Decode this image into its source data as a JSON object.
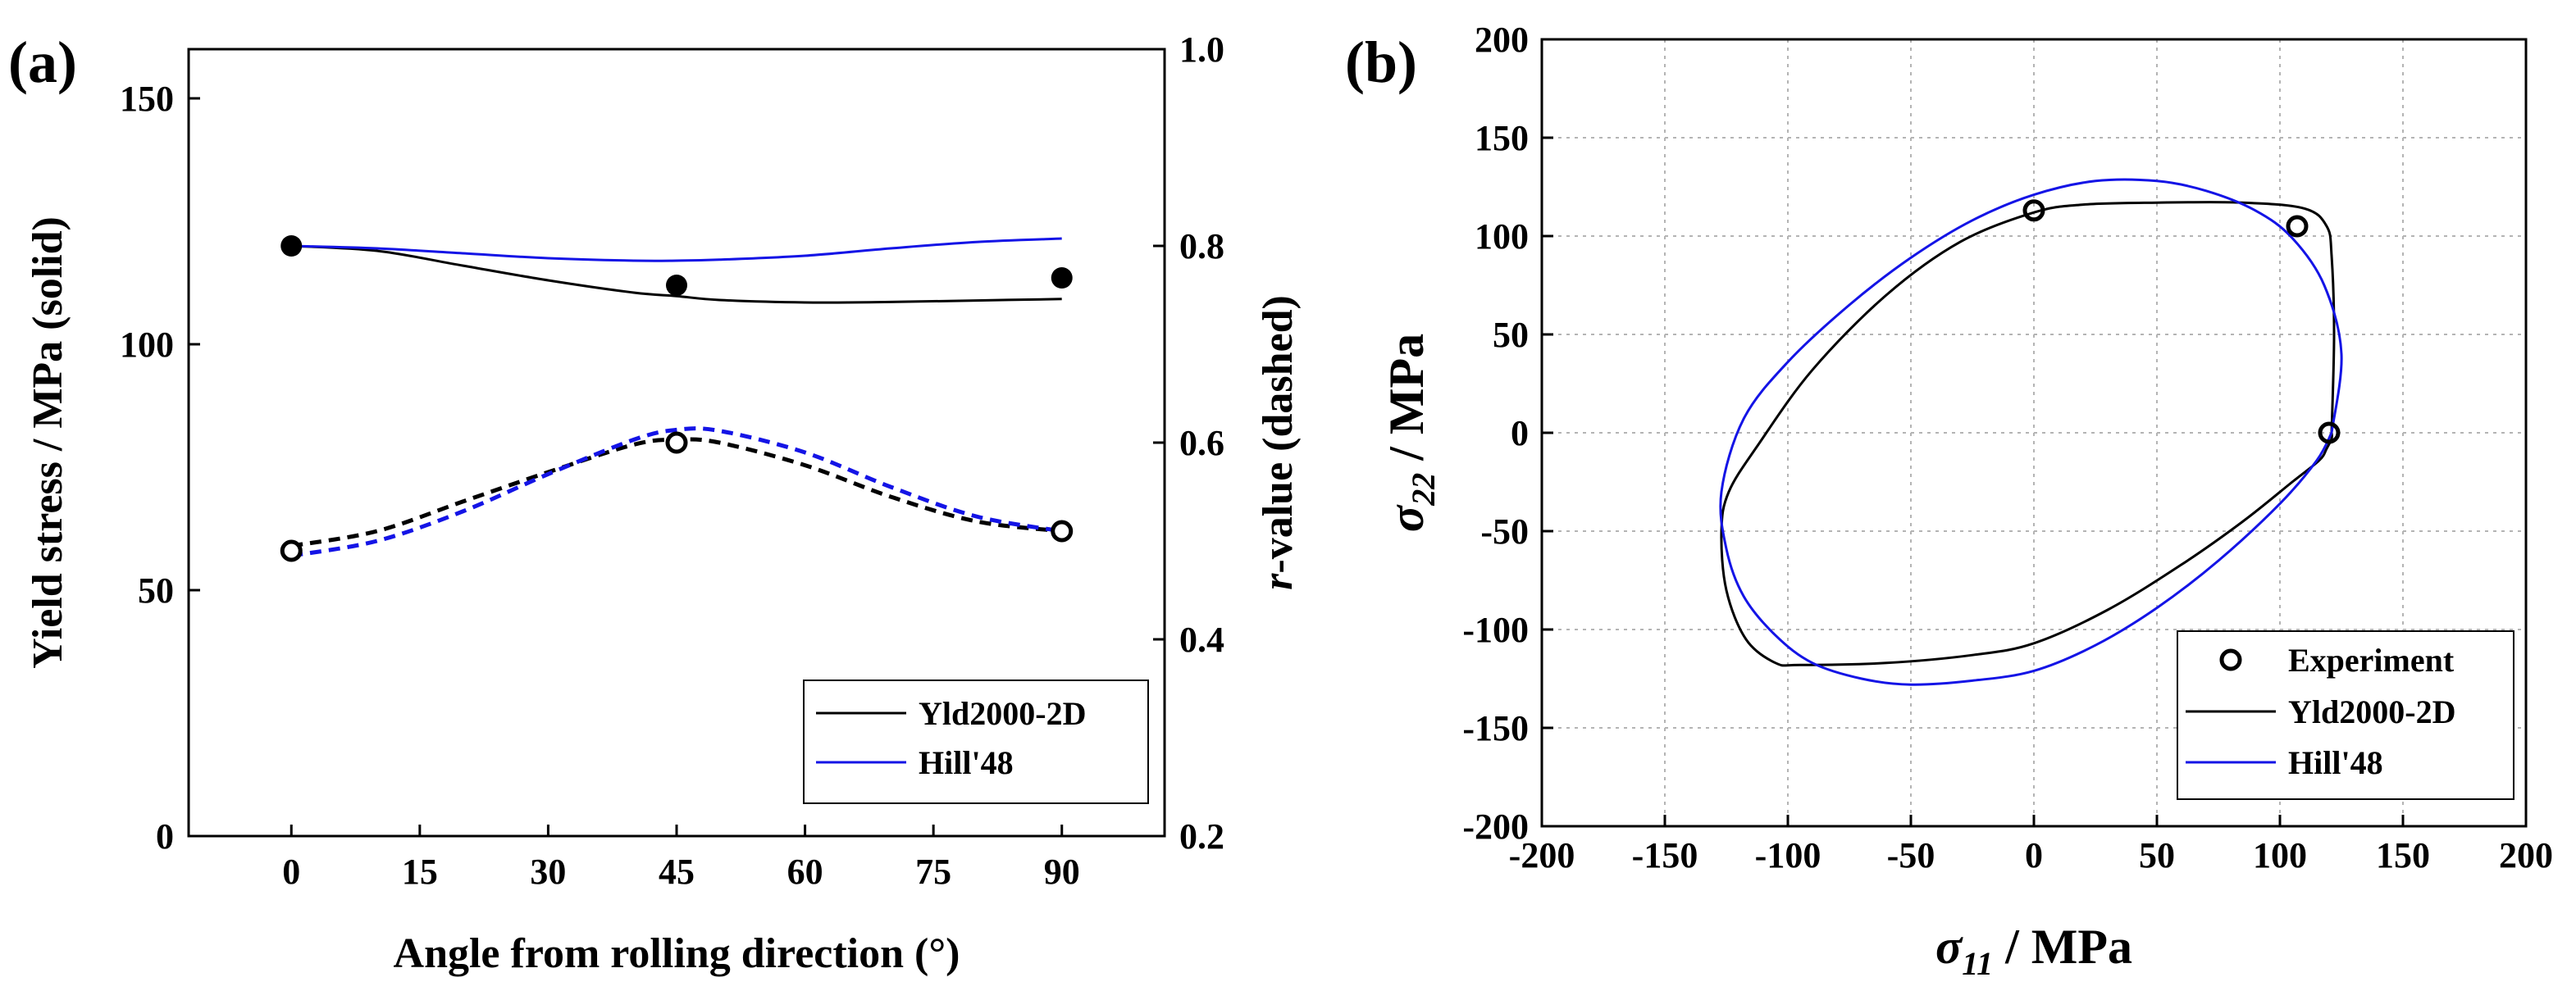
{
  "colors": {
    "yld": "#000000",
    "hill": "#1414e6",
    "experiment": "#000000"
  },
  "chart_data": [
    {
      "panel": "(a)",
      "type": "line",
      "xlabel": "Angle from rolling direction (°)",
      "ylabel": "Yield stress / MPa (solid)",
      "y2label_italic": "r",
      "y2label_rest": "-value (dashed)",
      "xlim": [
        -12,
        102
      ],
      "ylim": [
        0,
        160
      ],
      "y2lim": [
        0.2,
        1.0
      ],
      "xticks": [
        0,
        15,
        30,
        45,
        60,
        75,
        90
      ],
      "yticks": [
        0,
        50,
        100,
        150
      ],
      "y2ticks": [
        0.2,
        0.4,
        0.6,
        0.8,
        1.0
      ],
      "xtick_labels": [
        "0",
        "15",
        "30",
        "45",
        "60",
        "75",
        "90"
      ],
      "ytick_labels": [
        "0",
        "50",
        "100",
        "150"
      ],
      "y2tick_labels": [
        "0.2",
        "0.4",
        "0.6",
        "0.8",
        "1.0"
      ],
      "legend_position": "lower-right",
      "legend": [
        "Yld2000-2D",
        "Hill'48"
      ],
      "series": [
        {
          "name": "Yld2000-2D",
          "axis": "left",
          "style": "solid",
          "color": "#000000",
          "x": [
            0,
            10,
            20,
            30,
            40,
            45,
            50,
            60,
            70,
            80,
            90
          ],
          "y": [
            120,
            119,
            116,
            113,
            110.5,
            109.8,
            109,
            108.5,
            108.6,
            108.9,
            109.2
          ]
        },
        {
          "name": "Hill'48",
          "axis": "left",
          "style": "solid",
          "color": "#1414e6",
          "x": [
            0,
            10,
            20,
            30,
            40,
            45,
            50,
            60,
            70,
            80,
            90
          ],
          "y": [
            120,
            119.5,
            118.5,
            117.5,
            117,
            117,
            117.2,
            118,
            119.5,
            120.8,
            121.5
          ]
        },
        {
          "name": "Yld2000-2D r-value",
          "axis": "right",
          "style": "dashed",
          "color": "#000000",
          "x": [
            0,
            10,
            20,
            30,
            40,
            45,
            50,
            60,
            70,
            80,
            90
          ],
          "y": [
            0.495,
            0.51,
            0.54,
            0.57,
            0.598,
            0.603,
            0.6,
            0.577,
            0.545,
            0.52,
            0.51
          ]
        },
        {
          "name": "Hill'48 r-value",
          "axis": "right",
          "style": "dashed",
          "color": "#1414e6",
          "x": [
            0,
            10,
            20,
            30,
            40,
            45,
            50,
            60,
            70,
            80,
            90
          ],
          "y": [
            0.485,
            0.5,
            0.53,
            0.568,
            0.603,
            0.613,
            0.612,
            0.59,
            0.555,
            0.525,
            0.51
          ]
        }
      ],
      "experiment": {
        "x": [
          0,
          45,
          90
        ],
        "yield": [
          120,
          112,
          113.5
        ],
        "r": [
          0.49,
          0.6,
          0.51
        ]
      }
    },
    {
      "panel": "(b)",
      "type": "line",
      "xlabel_symbol": "σ",
      "xlabel_sub": "11",
      "xlabel_rest": " / MPa",
      "ylabel_symbol": "σ",
      "ylabel_sub": "22",
      "ylabel_rest": " / MPa",
      "xlim": [
        -200,
        200
      ],
      "ylim": [
        -200,
        200
      ],
      "ticks": [
        -200,
        -150,
        -100,
        -50,
        0,
        50,
        100,
        150,
        200
      ],
      "tick_labels": [
        "-200",
        "-150",
        "-100",
        "-50",
        "0",
        "50",
        "100",
        "150",
        "200"
      ],
      "grid": true,
      "legend_position": "lower-right",
      "legend": [
        "Experiment",
        "Yld2000-2D",
        "Hill'48"
      ],
      "series": [
        {
          "name": "Yld2000-2D",
          "color": "#000000",
          "x": [
            121,
            122,
            121,
            119,
            110,
            85,
            50,
            20,
            0,
            -30,
            -60,
            -90,
            -112,
            -124,
            -127,
            -125,
            -117,
            -105,
            -95,
            -60,
            -25,
            0,
            30,
            60,
            85,
            105,
            116,
            119,
            121,
            121,
            121
          ],
          "y": [
            0,
            50,
            90,
            105,
            114,
            117,
            117,
            116,
            112,
            97,
            70,
            32,
            -6,
            -30,
            -50,
            -80,
            -105,
            -117,
            -118,
            -117,
            -113,
            -107,
            -90,
            -67,
            -45,
            -25,
            -14,
            -8,
            -3,
            0,
            0
          ]
        },
        {
          "name": "Hill'48",
          "color": "#1414e6",
          "x": [
            121,
            125,
            118,
            105,
            90,
            70,
            50,
            25,
            0,
            -25,
            -50,
            -75,
            -100,
            -118,
            -127,
            -125,
            -118,
            -105,
            -90,
            -70,
            -50,
            -25,
            0,
            25,
            50,
            75,
            100,
            115,
            121
          ],
          "y": [
            0,
            40,
            75,
            99,
            113,
            123,
            128,
            128,
            121,
            108,
            89,
            65,
            36,
            7,
            -30,
            -59,
            -83,
            -103,
            -117,
            -125,
            -128,
            -126,
            -121,
            -108,
            -89,
            -65,
            -36,
            -14,
            0
          ]
        }
      ],
      "experiment": {
        "x": [
          0,
          107,
          120
        ],
        "y": [
          113,
          105,
          0
        ]
      }
    }
  ]
}
